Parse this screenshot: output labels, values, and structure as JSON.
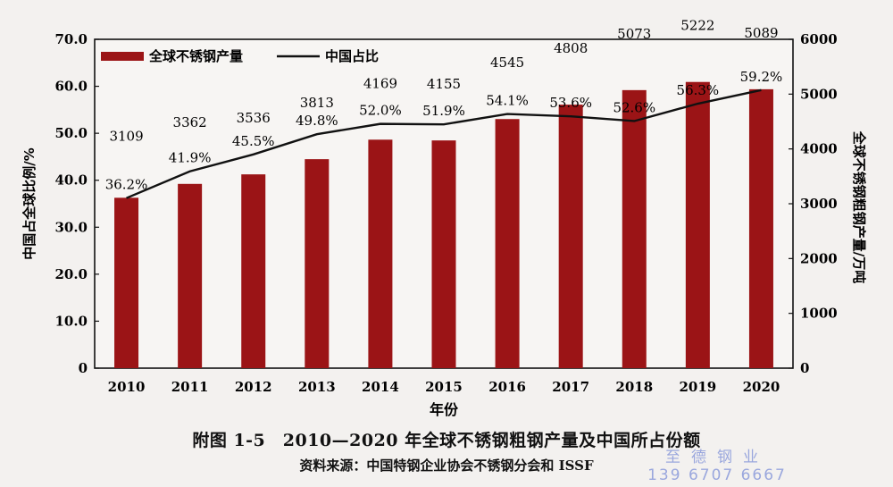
{
  "chart_data": {
    "type": "bar+line",
    "categories": [
      "2010",
      "2011",
      "2012",
      "2013",
      "2014",
      "2015",
      "2016",
      "2017",
      "2018",
      "2019",
      "2020"
    ],
    "bar_series": {
      "name": "全球不锈钢产量",
      "values": [
        3109,
        3362,
        3536,
        3813,
        4169,
        4155,
        4545,
        4808,
        5073,
        5222,
        5089
      ],
      "axis": "right",
      "color": "#9b1416"
    },
    "line_series": {
      "name": "中国占比",
      "values": [
        36.2,
        41.9,
        45.5,
        49.8,
        52.0,
        51.9,
        54.1,
        53.6,
        52.6,
        56.3,
        59.2
      ],
      "labels": [
        "36.2%",
        "41.9%",
        "45.5%",
        "49.8%",
        "52.0%",
        "51.9%",
        "54.1%",
        "53.6%",
        "52.6%",
        "56.3%",
        "59.2%"
      ],
      "axis": "left",
      "color": "#111111"
    },
    "left_axis": {
      "label": "中国占全球比例/%",
      "range": [
        0,
        70
      ],
      "ticks": [
        "0",
        "10.0",
        "20.0",
        "30.0",
        "40.0",
        "50.0",
        "60.0",
        "70.0"
      ]
    },
    "right_axis": {
      "label": "全球不锈钢粗钢产量/万吨",
      "range": [
        0,
        6000
      ],
      "ticks": [
        "0",
        "1000",
        "2000",
        "3000",
        "4000",
        "5000",
        "6000"
      ]
    },
    "xlabel": "年份",
    "legend_position": "top-left"
  },
  "figure": {
    "title": "附图 1-5　2010—2020 年全球不锈钢粗钢产量及中国所占份额",
    "source": "资料来源：中国特钢企业协会不锈钢分会和 ISSF"
  },
  "watermark": {
    "line1": "至德钢业",
    "line2": "139 6707 6667"
  }
}
